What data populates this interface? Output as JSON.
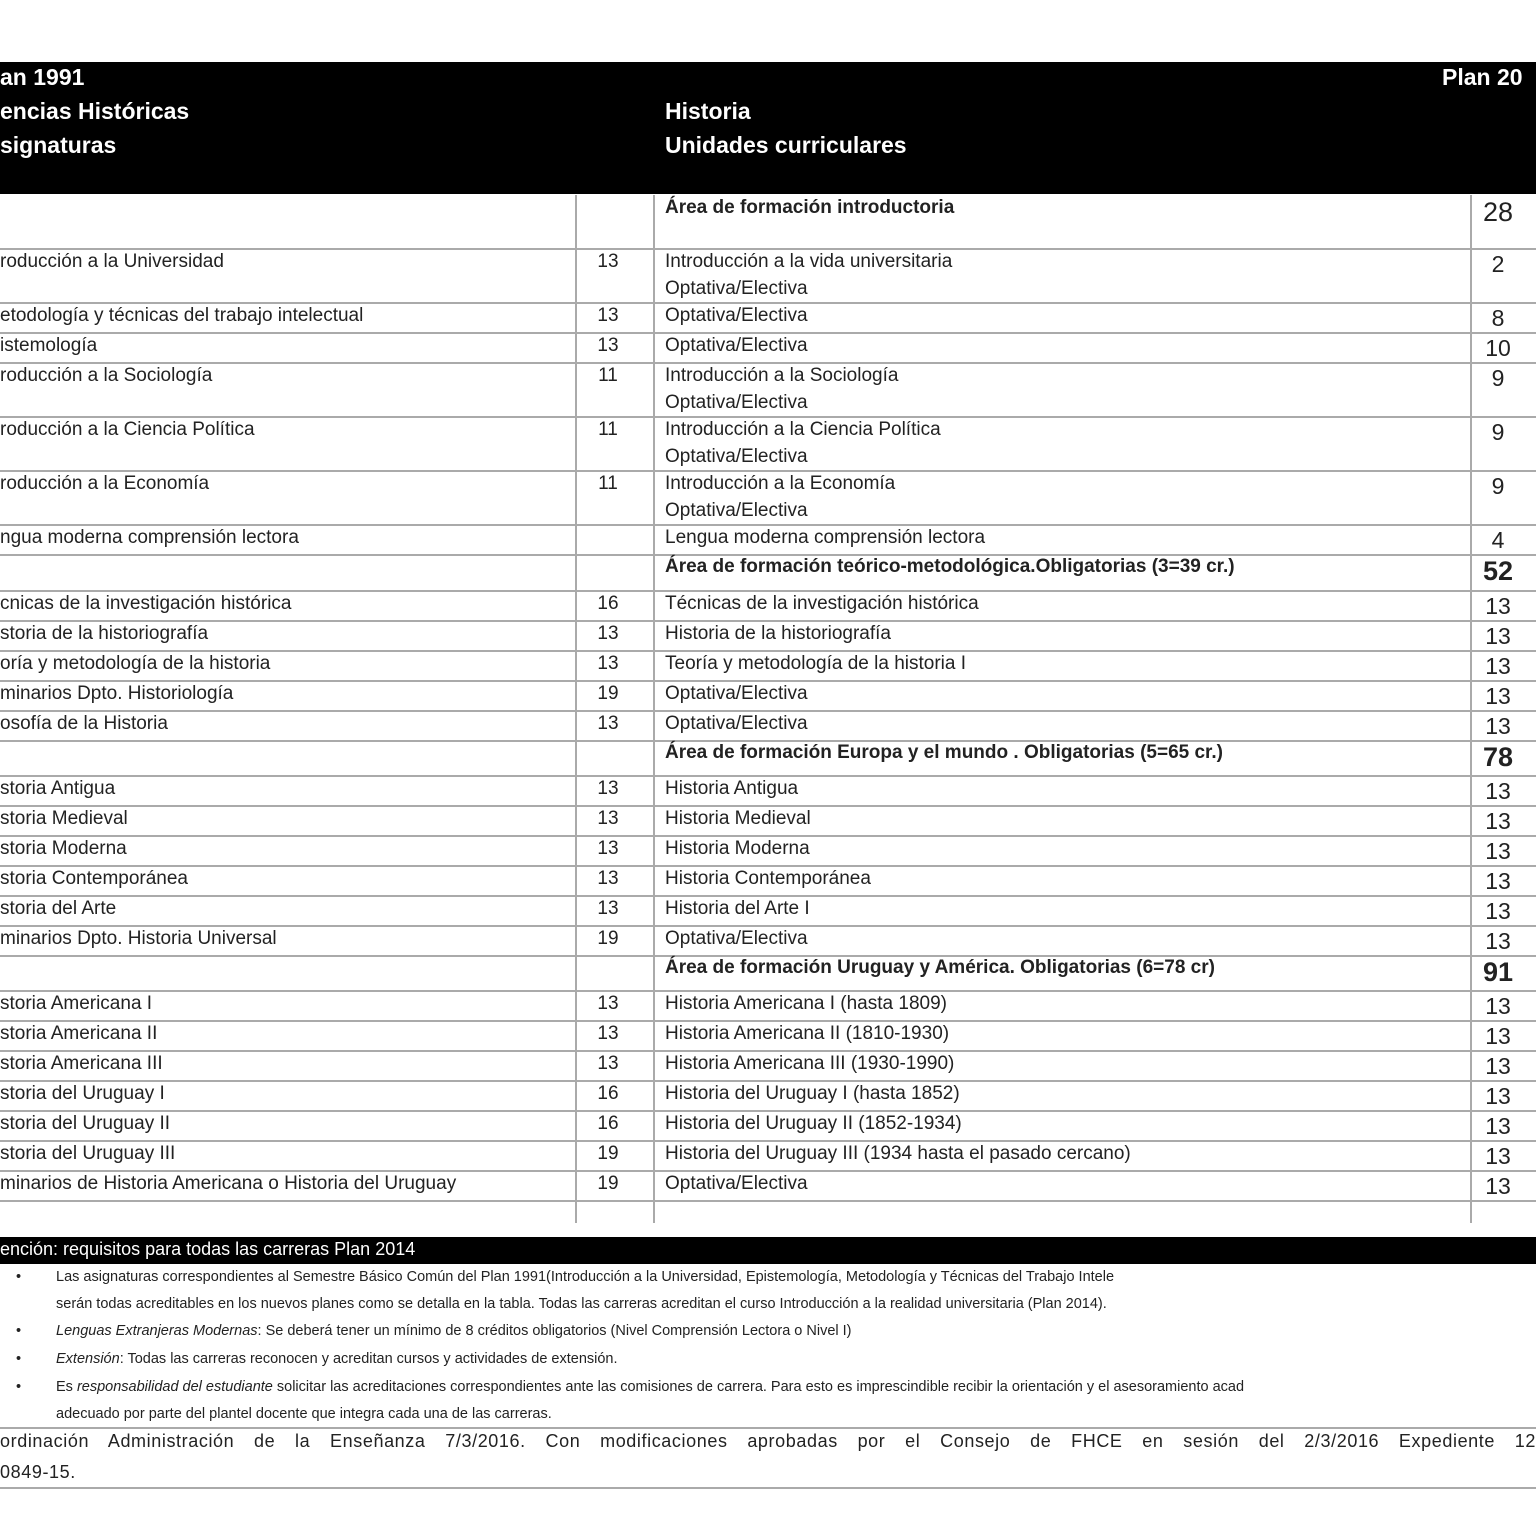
{
  "header": {
    "left": [
      "an 1991",
      "encias Históricas",
      "signaturas"
    ],
    "middle": [
      "Historia",
      "Unidades curriculares"
    ],
    "right": "Plan 20"
  },
  "table": {
    "rows": [
      {
        "area": "Área de formación introductoria",
        "credits": 28
      },
      {
        "old": "roducción a la Universidad",
        "old_credits": 13,
        "new": [
          "Introducción a la vida universitaria",
          "Optativa/Electiva"
        ],
        "new_credits": 2
      },
      {
        "old": "etodología y técnicas del trabajo intelectual",
        "old_credits": 13,
        "new": [
          "Optativa/Electiva"
        ],
        "new_credits": 8
      },
      {
        "old": "istemología",
        "old_credits": 13,
        "new": [
          "Optativa/Electiva"
        ],
        "new_credits": 10
      },
      {
        "old": "roducción a la Sociología",
        "old_credits": 11,
        "new": [
          "Introducción a la Sociología",
          "Optativa/Electiva"
        ],
        "new_credits": 9
      },
      {
        "old": "roducción a la Ciencia Política",
        "old_credits": 11,
        "new": [
          "Introducción a la Ciencia Política",
          "Optativa/Electiva"
        ],
        "new_credits": 9
      },
      {
        "old": "roducción a la Economía",
        "old_credits": 11,
        "new": [
          "Introducción a la Economía",
          "Optativa/Electiva"
        ],
        "new_credits": 9
      },
      {
        "old": "ngua moderna comprensión lectora",
        "new": [
          "Lengua moderna comprensión lectora"
        ],
        "new_credits": 4
      },
      {
        "area": "Área de formación teórico-metodológica.Obligatorias (3=39 cr.)",
        "credits": 52
      },
      {
        "old": "cnicas de la investigación histórica",
        "old_credits": 16,
        "new": [
          "Técnicas de la investigación histórica"
        ],
        "new_credits": 13
      },
      {
        "old": "storia de la historiografía",
        "old_credits": 13,
        "new": [
          "Historia de la historiografía"
        ],
        "new_credits": 13
      },
      {
        "old": "oría y metodología de la historia",
        "old_credits": 13,
        "new": [
          "Teoría y metodología de la historia I"
        ],
        "new_credits": 13
      },
      {
        "old": "minarios Dpto. Historiología",
        "old_credits": 19,
        "new": [
          "Optativa/Electiva"
        ],
        "new_credits": 13
      },
      {
        "old": "osofía de la Historia",
        "old_credits": 13,
        "new": [
          "Optativa/Electiva"
        ],
        "new_credits": 13
      },
      {
        "area": "Área de formación Europa y el mundo . Obligatorias (5=65 cr.)",
        "credits": 78
      },
      {
        "old": "storia Antigua",
        "old_credits": 13,
        "new": [
          "Historia Antigua"
        ],
        "new_credits": 13
      },
      {
        "old": "storia Medieval",
        "old_credits": 13,
        "new": [
          "Historia Medieval"
        ],
        "new_credits": 13
      },
      {
        "old": "storia Moderna",
        "old_credits": 13,
        "new": [
          "Historia Moderna"
        ],
        "new_credits": 13
      },
      {
        "old": "storia Contemporánea",
        "old_credits": 13,
        "new": [
          "Historia Contemporánea"
        ],
        "new_credits": 13
      },
      {
        "old": "storia del Arte",
        "old_credits": 13,
        "new": [
          "Historia del Arte I"
        ],
        "new_credits": 13
      },
      {
        "old": "minarios Dpto. Historia Universal",
        "old_credits": 19,
        "new": [
          "Optativa/Electiva"
        ],
        "new_credits": 13
      },
      {
        "area": "Área de formación Uruguay y América. Obligatorias (6=78 cr)",
        "credits": 91
      },
      {
        "old": "storia Americana I",
        "old_credits": 13,
        "new": [
          "Historia Americana I (hasta 1809)"
        ],
        "new_credits": 13
      },
      {
        "old": "storia Americana II",
        "old_credits": 13,
        "new": [
          "Historia Americana II (1810-1930)"
        ],
        "new_credits": 13
      },
      {
        "old": "storia Americana III",
        "old_credits": 13,
        "new": [
          "Historia Americana III (1930-1990)"
        ],
        "new_credits": 13
      },
      {
        "old": "storia del Uruguay I",
        "old_credits": 16,
        "new": [
          "Historia del Uruguay I (hasta 1852)"
        ],
        "new_credits": 13
      },
      {
        "old": "storia del Uruguay II",
        "old_credits": 16,
        "new": [
          "Historia del Uruguay II (1852-1934)"
        ],
        "new_credits": 13
      },
      {
        "old": "storia del Uruguay III",
        "old_credits": 19,
        "new": [
          "Historia del Uruguay III (1934 hasta el pasado cercano)"
        ],
        "new_credits": 13
      },
      {
        "old": "minarios de Historia Americana o Historia del Uruguay",
        "old_credits": 19,
        "new": [
          "Optativa/Electiva"
        ],
        "new_credits": 13
      }
    ]
  },
  "notes": {
    "title": "ención: requisitos para todas las carreras Plan 2014",
    "items": [
      [
        [
          "Las asignaturas correspondientes al Semestre Básico Común del Plan 1991(Introducción a la Universidad, Epistemología, Metodología y Técnicas del Trabajo Intele"
        ],
        [
          "serán todas acreditables en los nuevos planes como se detalla en la tabla. Todas las carreras acreditan el curso Introducción a la realidad universitaria (Plan 2014)."
        ]
      ],
      [
        [
          {
            "i": "Lenguas Extranjeras Modernas"
          },
          ": Se deberá tener un mínimo de 8 créditos obligatorios (Nivel Comprensión Lectora o Nivel I)"
        ]
      ],
      [
        [
          {
            "i": "Extensión"
          },
          ": Todas las carreras reconocen y acreditan cursos y actividades de extensión."
        ]
      ],
      [
        [
          "Es ",
          {
            "i": "responsabilidad del estudiante"
          },
          " solicitar las acreditaciones correspondientes ante las comisiones de carrera. Para esto es imprescindible recibir la orientación y el asesoramiento acad"
        ],
        [
          "adecuado por parte del plantel docente que integra cada una de las carreras."
        ]
      ]
    ]
  },
  "footer": [
    "ordinación Administración de la Enseñanza 7/3/2016. Con modificaciones aprobadas por el Consejo de FHCE en sesión del 2/3/2016 Expediente 12",
    "0849-15."
  ]
}
